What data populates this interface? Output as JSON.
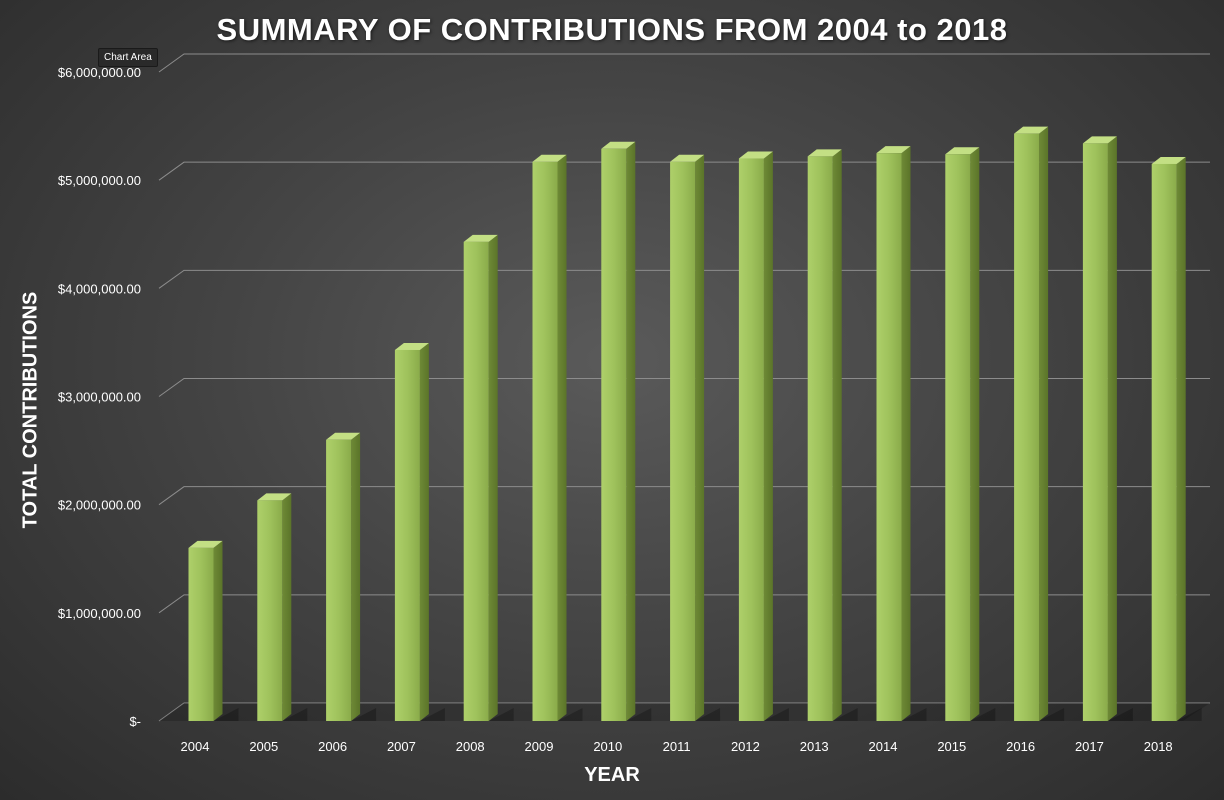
{
  "tooltip": "Chart Area",
  "chart_data": {
    "type": "bar",
    "title": "SUMMARY OF CONTRIBUTIONS FROM 2004 to 2018",
    "xlabel": "YEAR",
    "ylabel": "TOTAL CONTRIBUTIONS",
    "categories": [
      "2004",
      "2005",
      "2006",
      "2007",
      "2008",
      "2009",
      "2010",
      "2011",
      "2012",
      "2013",
      "2014",
      "2015",
      "2016",
      "2017",
      "2018"
    ],
    "values": [
      1600000,
      2040000,
      2600000,
      3430000,
      4430000,
      5170000,
      5290000,
      5170000,
      5200000,
      5220000,
      5250000,
      5240000,
      5430000,
      5340000,
      5150000
    ],
    "ylim": [
      0,
      6000000
    ],
    "yticks": [
      0,
      1000000,
      2000000,
      3000000,
      4000000,
      5000000,
      6000000
    ],
    "ytick_labels": [
      "$-",
      "$1,000,000.00",
      "$2,000,000.00",
      "$3,000,000.00",
      "$4,000,000.00",
      "$5,000,000.00",
      "$6,000,000.00"
    ],
    "grid": true,
    "bar_color": "#9bbb59"
  }
}
